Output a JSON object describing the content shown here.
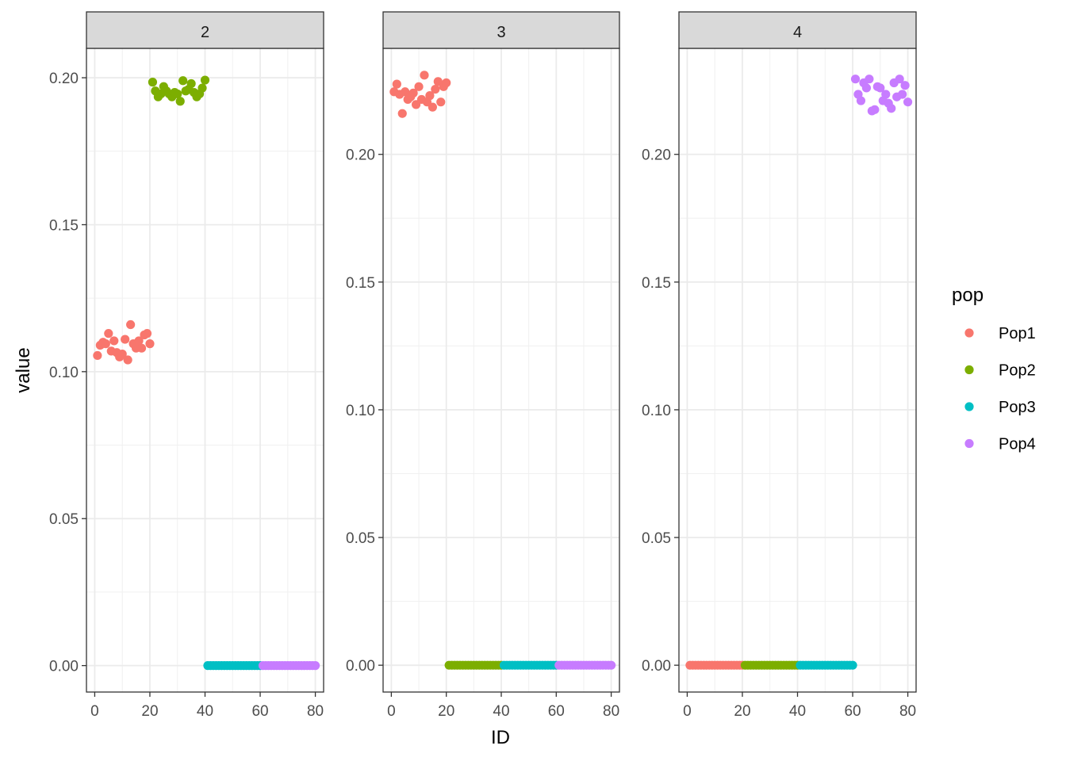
{
  "chart_data": {
    "type": "scatter",
    "xlabel": "ID",
    "ylabel": "value",
    "x_ticks": [
      0,
      20,
      40,
      60,
      80
    ],
    "xlim": [
      -3,
      83
    ],
    "legend": {
      "title": "pop",
      "position": "right",
      "entries": [
        {
          "name": "Pop1",
          "color": "#F8766D"
        },
        {
          "name": "Pop2",
          "color": "#7CAE00"
        },
        {
          "name": "Pop3",
          "color": "#00BFC4"
        },
        {
          "name": "Pop4",
          "color": "#C77CFF"
        }
      ]
    },
    "panels": [
      {
        "strip": "2",
        "ylim": [
          -0.009,
          0.21
        ],
        "y_ticks": [
          0.0,
          0.05,
          0.1,
          0.15,
          0.2
        ],
        "y_tick_labels": [
          "0.00",
          "0.05",
          "0.10",
          "0.15",
          "0.20"
        ],
        "series": [
          {
            "name": "Pop1",
            "x": [
              1,
              2,
              3,
              4,
              5,
              6,
              7,
              8,
              9,
              10,
              11,
              12,
              13,
              14,
              15,
              16,
              17,
              18,
              19,
              20
            ],
            "y": [
              0.1055,
              0.109,
              0.11,
              0.1095,
              0.113,
              0.107,
              0.1105,
              0.1065,
              0.105,
              0.106,
              0.111,
              0.104,
              0.116,
              0.1095,
              0.108,
              0.1105,
              0.108,
              0.1125,
              0.113,
              0.1095
            ]
          },
          {
            "name": "Pop2",
            "x": [
              21,
              22,
              23,
              24,
              25,
              26,
              27,
              28,
              29,
              30,
              31,
              32,
              33,
              34,
              35,
              36,
              37,
              38,
              39,
              40
            ],
            "y": [
              0.1985,
              0.1955,
              0.1935,
              0.1945,
              0.197,
              0.1955,
              0.1945,
              0.1935,
              0.195,
              0.1945,
              0.192,
              0.199,
              0.1955,
              0.196,
              0.198,
              0.195,
              0.1935,
              0.1945,
              0.1965,
              0.1992
            ]
          },
          {
            "name": "Pop3",
            "x": [
              41,
              42,
              43,
              44,
              45,
              46,
              47,
              48,
              49,
              50,
              51,
              52,
              53,
              54,
              55,
              56,
              57,
              58,
              59,
              60
            ],
            "y": [
              0,
              0,
              0,
              0,
              0,
              0,
              0,
              0,
              0,
              0,
              0,
              0,
              0,
              0,
              0,
              0,
              0,
              0,
              0,
              0
            ]
          },
          {
            "name": "Pop4",
            "x": [
              61,
              62,
              63,
              64,
              65,
              66,
              67,
              68,
              69,
              70,
              71,
              72,
              73,
              74,
              75,
              76,
              77,
              78,
              79,
              80
            ],
            "y": [
              0,
              0,
              0,
              0,
              0,
              0,
              0,
              0,
              0,
              0,
              0,
              0,
              0,
              0,
              0,
              0,
              0,
              0,
              0,
              0
            ]
          }
        ]
      },
      {
        "strip": "3",
        "ylim": [
          -0.0105,
          0.2415
        ],
        "y_ticks": [
          0.0,
          0.05,
          0.1,
          0.15,
          0.2
        ],
        "y_tick_labels": [
          "0.00",
          "0.05",
          "0.10",
          "0.15",
          "0.20"
        ],
        "series": [
          {
            "name": "Pop1",
            "x": [
              1,
              2,
              3,
              4,
              5,
              6,
              7,
              8,
              9,
              10,
              11,
              12,
              13,
              14,
              15,
              16,
              17,
              18,
              19,
              20
            ],
            "y": [
              0.2245,
              0.2275,
              0.2235,
              0.216,
              0.2245,
              0.2215,
              0.2225,
              0.224,
              0.2195,
              0.2265,
              0.2215,
              0.231,
              0.2205,
              0.223,
              0.2185,
              0.2255,
              0.2285,
              0.2205,
              0.2265,
              0.228
            ]
          },
          {
            "name": "Pop2",
            "x": [
              21,
              22,
              23,
              24,
              25,
              26,
              27,
              28,
              29,
              30,
              31,
              32,
              33,
              34,
              35,
              36,
              37,
              38,
              39,
              40
            ],
            "y": [
              0,
              0,
              0,
              0,
              0,
              0,
              0,
              0,
              0,
              0,
              0,
              0,
              0,
              0,
              0,
              0,
              0,
              0,
              0,
              0
            ]
          },
          {
            "name": "Pop3",
            "x": [
              41,
              42,
              43,
              44,
              45,
              46,
              47,
              48,
              49,
              50,
              51,
              52,
              53,
              54,
              55,
              56,
              57,
              58,
              59,
              60
            ],
            "y": [
              0,
              0,
              0,
              0,
              0,
              0,
              0,
              0,
              0,
              0,
              0,
              0,
              0,
              0,
              0,
              0,
              0,
              0,
              0,
              0
            ]
          },
          {
            "name": "Pop4",
            "x": [
              61,
              62,
              63,
              64,
              65,
              66,
              67,
              68,
              69,
              70,
              71,
              72,
              73,
              74,
              75,
              76,
              77,
              78,
              79,
              80
            ],
            "y": [
              0,
              0,
              0,
              0,
              0,
              0,
              0,
              0,
              0,
              0,
              0,
              0,
              0,
              0,
              0,
              0,
              0,
              0,
              0,
              0
            ]
          }
        ]
      },
      {
        "strip": "4",
        "ylim": [
          -0.0105,
          0.2415
        ],
        "y_ticks": [
          0.0,
          0.05,
          0.1,
          0.15,
          0.2
        ],
        "y_tick_labels": [
          "0.00",
          "0.05",
          "0.10",
          "0.15",
          "0.20"
        ],
        "series": [
          {
            "name": "Pop1",
            "x": [
              1,
              2,
              3,
              4,
              5,
              6,
              7,
              8,
              9,
              10,
              11,
              12,
              13,
              14,
              15,
              16,
              17,
              18,
              19,
              20
            ],
            "y": [
              0,
              0,
              0,
              0,
              0,
              0,
              0,
              0,
              0,
              0,
              0,
              0,
              0,
              0,
              0,
              0,
              0,
              0,
              0,
              0
            ]
          },
          {
            "name": "Pop2",
            "x": [
              21,
              22,
              23,
              24,
              25,
              26,
              27,
              28,
              29,
              30,
              31,
              32,
              33,
              34,
              35,
              36,
              37,
              38,
              39,
              40
            ],
            "y": [
              0,
              0,
              0,
              0,
              0,
              0,
              0,
              0,
              0,
              0,
              0,
              0,
              0,
              0,
              0,
              0,
              0,
              0,
              0,
              0
            ]
          },
          {
            "name": "Pop3",
            "x": [
              41,
              42,
              43,
              44,
              45,
              46,
              47,
              48,
              49,
              50,
              51,
              52,
              53,
              54,
              55,
              56,
              57,
              58,
              59,
              60
            ],
            "y": [
              0,
              0,
              0,
              0,
              0,
              0,
              0,
              0,
              0,
              0,
              0,
              0,
              0,
              0,
              0,
              0,
              0,
              0,
              0,
              0
            ]
          },
          {
            "name": "Pop4",
            "x": [
              61,
              62,
              63,
              64,
              65,
              66,
              67,
              68,
              69,
              70,
              71,
              72,
              73,
              74,
              75,
              76,
              77,
              78,
              79,
              80
            ],
            "y": [
              0.2295,
              0.2235,
              0.221,
              0.228,
              0.226,
              0.2295,
              0.217,
              0.2175,
              0.2265,
              0.226,
              0.221,
              0.2235,
              0.22,
              0.218,
              0.228,
              0.2225,
              0.2295,
              0.2235,
              0.227,
              0.2205
            ]
          }
        ]
      }
    ]
  }
}
